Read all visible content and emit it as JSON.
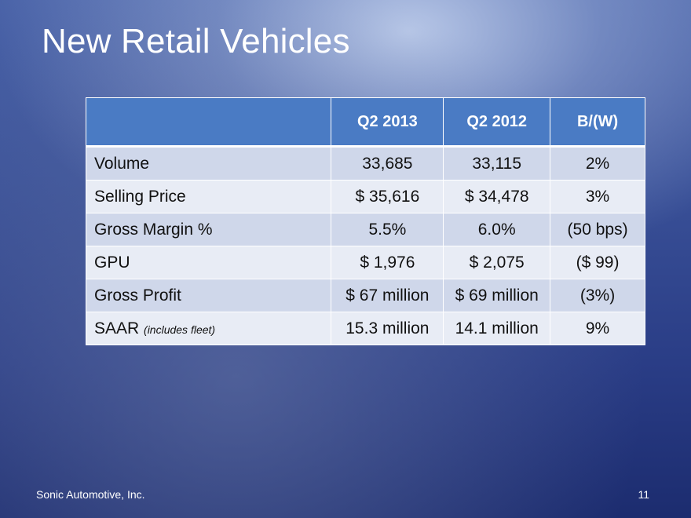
{
  "slide": {
    "title": "New Retail Vehicles"
  },
  "table": {
    "headers": [
      "",
      "Q2 2013",
      "Q2 2012",
      "B/(W)"
    ],
    "rows": [
      {
        "label": "Volume",
        "note": "",
        "q2_2013": "33,685",
        "q2_2012": "33,115",
        "bw": "2%"
      },
      {
        "label": "Selling Price",
        "note": "",
        "q2_2013": "$ 35,616",
        "q2_2012": "$ 34,478",
        "bw": "3%"
      },
      {
        "label": "Gross Margin %",
        "note": "",
        "q2_2013": "5.5%",
        "q2_2012": "6.0%",
        "bw": "(50 bps)"
      },
      {
        "label": "GPU",
        "note": "",
        "q2_2013": "$ 1,976",
        "q2_2012": "$ 2,075",
        "bw": "($ 99)"
      },
      {
        "label": "Gross Profit",
        "note": "",
        "q2_2013": "$ 67 million",
        "q2_2012": "$ 69 million",
        "bw": "(3%)"
      },
      {
        "label": "SAAR",
        "note": "(includes fleet)",
        "q2_2013": "15.3 million",
        "q2_2012": "14.1 million",
        "bw": "9%"
      }
    ]
  },
  "footer": {
    "company": "Sonic Automotive, Inc.",
    "page_number": "11"
  }
}
